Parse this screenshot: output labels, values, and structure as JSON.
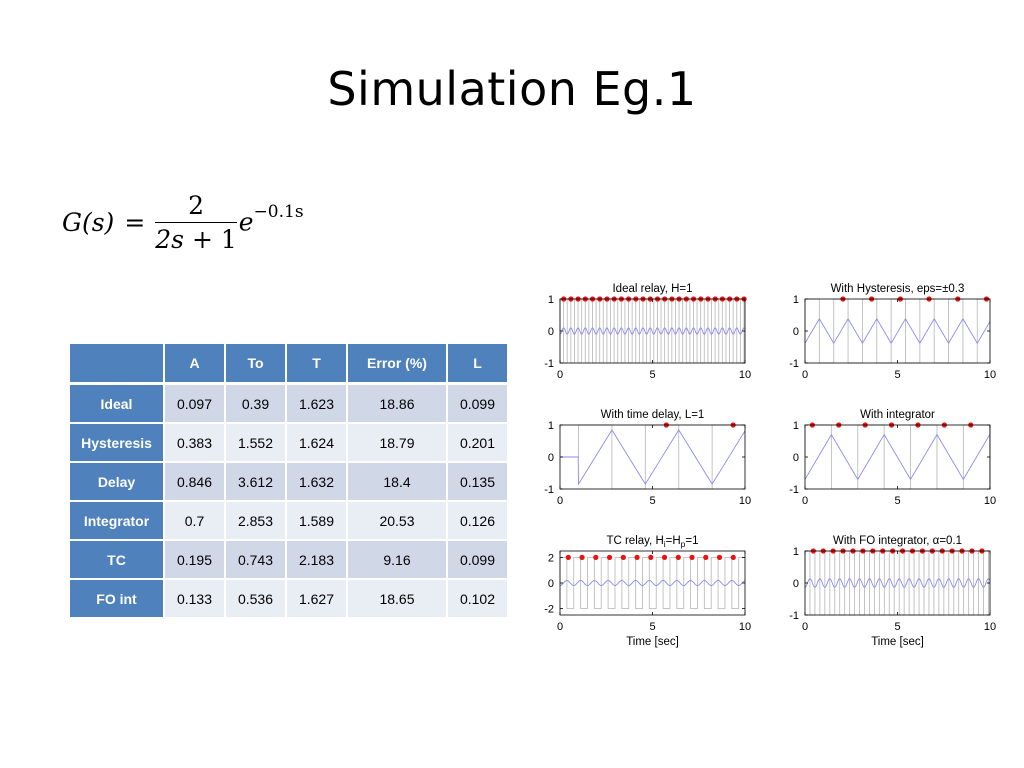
{
  "slide": {
    "title": "Simulation Eg.1"
  },
  "formula": {
    "lhs": "G(s)",
    "eq": "=",
    "numerator": "2",
    "denominator_a": "2s",
    "denominator_b": " + 1",
    "exp_base": "e",
    "exp_power": "−0.1s"
  },
  "table": {
    "columns": [
      "",
      "A",
      "To",
      "T",
      "Error (%)",
      "L"
    ],
    "rows": [
      {
        "name": "Ideal",
        "A": "0.097",
        "To": "0.39",
        "T": "1.623",
        "Error": "18.86",
        "L": "0.099"
      },
      {
        "name": "Hysteresis",
        "A": "0.383",
        "To": "1.552",
        "T": "1.624",
        "Error": "18.79",
        "L": "0.201"
      },
      {
        "name": "Delay",
        "A": "0.846",
        "To": "3.612",
        "T": "1.632",
        "Error": "18.4",
        "L": "0.135"
      },
      {
        "name": "Integrator",
        "A": "0.7",
        "To": "2.853",
        "T": "1.589",
        "Error": "20.53",
        "L": "0.126"
      },
      {
        "name": "TC",
        "A": "0.195",
        "To": "0.743",
        "T": "2.183",
        "Error": "9.16",
        "L": "0.099"
      },
      {
        "name": "FO int",
        "A": "0.133",
        "To": "0.536",
        "T": "1.627",
        "Error": "18.65",
        "L": "0.102"
      }
    ]
  },
  "chart_data": [
    {
      "type": "line",
      "title": "Ideal relay, H=1",
      "xlim": [
        0,
        10
      ],
      "ylim": [
        -1,
        1
      ],
      "xticks": [
        "0",
        "5",
        "10"
      ],
      "yticks": [
        "1",
        "0",
        "-1"
      ],
      "xlabel": "",
      "relay_amp": 1,
      "relay_period": 0.39,
      "out_amp": 0.097,
      "out_shape": "sine",
      "delay": 0,
      "marker_period": 0.39,
      "marker_start": 0.2,
      "marker_y": 1,
      "colors": {
        "relay": "#bdbdbd",
        "output": "#8a8af0",
        "marker": "#ee1111"
      }
    },
    {
      "type": "line",
      "title": "With Hysteresis, eps=±0.3",
      "xlim": [
        0,
        10
      ],
      "ylim": [
        -1,
        1
      ],
      "xticks": [
        "0",
        "5",
        "10"
      ],
      "yticks": [
        "1",
        "0",
        "-1"
      ],
      "xlabel": "",
      "relay_amp": 1,
      "relay_period": 1.552,
      "out_amp": 0.383,
      "out_shape": "triangle",
      "delay": 0,
      "marker_period": 1.552,
      "marker_start": 2.05,
      "marker_y": 1,
      "colors": {
        "relay": "#bdbdbd",
        "output": "#8a8af0",
        "marker": "#ee1111"
      }
    },
    {
      "type": "line",
      "title": "With time delay, L=1",
      "xlim": [
        0,
        10
      ],
      "ylim": [
        -1,
        1
      ],
      "xticks": [
        "0",
        "5",
        "10"
      ],
      "yticks": [
        "1",
        "0",
        "-1"
      ],
      "xlabel": "",
      "relay_amp": 1,
      "relay_period": 3.612,
      "out_amp": 0.846,
      "out_shape": "triangle",
      "delay": 1,
      "marker_period": 3.612,
      "marker_start": 5.75,
      "marker_y": 1,
      "colors": {
        "relay": "#bdbdbd",
        "output": "#8a8af0",
        "marker": "#ee1111"
      }
    },
    {
      "type": "line",
      "title": "With integrator",
      "xlim": [
        0,
        10
      ],
      "ylim": [
        -1,
        1
      ],
      "xticks": [
        "0",
        "5",
        "10"
      ],
      "yticks": [
        "1",
        "0",
        "-1"
      ],
      "xlabel": "",
      "relay_amp": 1,
      "relay_period": 2.853,
      "out_amp": 0.7,
      "out_shape": "triangle",
      "delay": 0,
      "marker_period": 1.4265,
      "marker_start": 0.4,
      "marker_y": 1,
      "colors": {
        "relay": "#bdbdbd",
        "output": "#8a8af0",
        "marker": "#ee1111"
      }
    },
    {
      "type": "line",
      "title": "TC relay, H",
      "title_sub1": "i",
      "title_mid": "=H",
      "title_sub2": "p",
      "title_end": "=1",
      "xlim": [
        0,
        10
      ],
      "ylim": [
        -2.5,
        2.5
      ],
      "xticks": [
        "0",
        "5",
        "10"
      ],
      "yticks": [
        "2",
        "0",
        "-2"
      ],
      "xlabel": "Time [sec]",
      "relay_amp": 2,
      "relay_period": 0.743,
      "out_amp": 0.195,
      "out_shape": "sine",
      "delay": 0,
      "marker_period": 0.743,
      "marker_start": 0.45,
      "marker_y": 2,
      "colors": {
        "relay": "#bdbdbd",
        "output": "#8a8af0",
        "marker": "#ee1111"
      }
    },
    {
      "type": "line",
      "title": "With FO integrator, α=0.1",
      "xlim": [
        0,
        10
      ],
      "ylim": [
        -1,
        1
      ],
      "xticks": [
        "0",
        "5",
        "10"
      ],
      "yticks": [
        "1",
        "0",
        "-1"
      ],
      "xlabel": "Time [sec]",
      "relay_amp": 1,
      "relay_period": 0.536,
      "out_amp": 0.133,
      "out_shape": "sine",
      "delay": 0,
      "marker_period": 0.536,
      "marker_start": 0.45,
      "marker_y": 1,
      "colors": {
        "relay": "#bdbdbd",
        "output": "#8a8af0",
        "marker": "#ee1111"
      }
    }
  ]
}
